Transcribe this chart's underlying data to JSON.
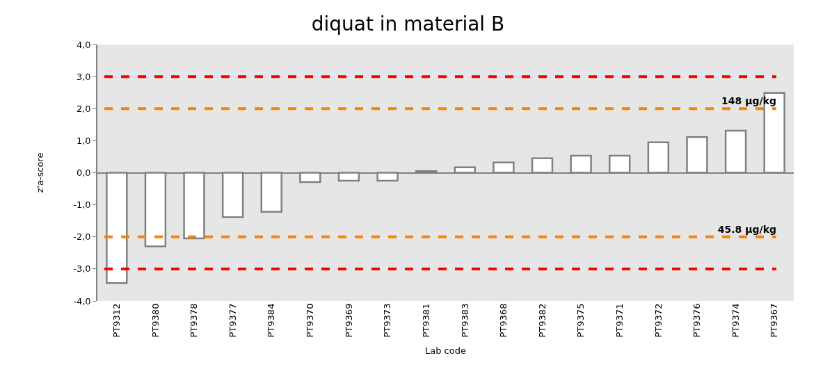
{
  "chart_data": {
    "type": "bar",
    "title": "diquat in material B",
    "xlabel": "Lab code",
    "ylabel": "z'a-score",
    "categories": [
      "PT9312",
      "PT9380",
      "PT9378",
      "PT9377",
      "PT9384",
      "PT9370",
      "PT9369",
      "PT9373",
      "PT9381",
      "PT9383",
      "PT9368",
      "PT9382",
      "PT9375",
      "PT9371",
      "PT9372",
      "PT9376",
      "PT9374",
      "PT9367"
    ],
    "values": [
      -3.44,
      -2.3,
      -2.05,
      -1.39,
      -1.22,
      -0.29,
      -0.25,
      -0.25,
      0.05,
      0.17,
      0.32,
      0.45,
      0.53,
      0.53,
      0.95,
      1.11,
      1.31,
      2.49
    ],
    "color": "#ffffff",
    "ylim": [
      -4,
      4
    ],
    "yticks": [
      {
        "value": -4,
        "label": "-4,0"
      },
      {
        "value": -3,
        "label": "-3,0"
      },
      {
        "value": -2,
        "label": "-2,0"
      },
      {
        "value": -1,
        "label": "-1,0"
      },
      {
        "value": 0,
        "label": "0,0"
      },
      {
        "value": 1,
        "label": "1,0"
      },
      {
        "value": 2,
        "label": "2,0"
      },
      {
        "value": 3,
        "label": "3,0"
      },
      {
        "value": 4,
        "label": "4,0"
      }
    ],
    "grid": false,
    "ref_lines": [
      {
        "axis": "y",
        "value": 3,
        "color": "#ff0000",
        "line_style": "dashed"
      },
      {
        "axis": "y",
        "value": 2,
        "label": "148 µg/kg",
        "color": "#ff8000",
        "line_style": "dashed"
      },
      {
        "axis": "y",
        "value": -2,
        "label": "45.8 µg/kg",
        "color": "#ff8000",
        "line_style": "dashed"
      },
      {
        "axis": "y",
        "value": -3,
        "color": "#ff0000",
        "line_style": "dashed"
      }
    ]
  }
}
